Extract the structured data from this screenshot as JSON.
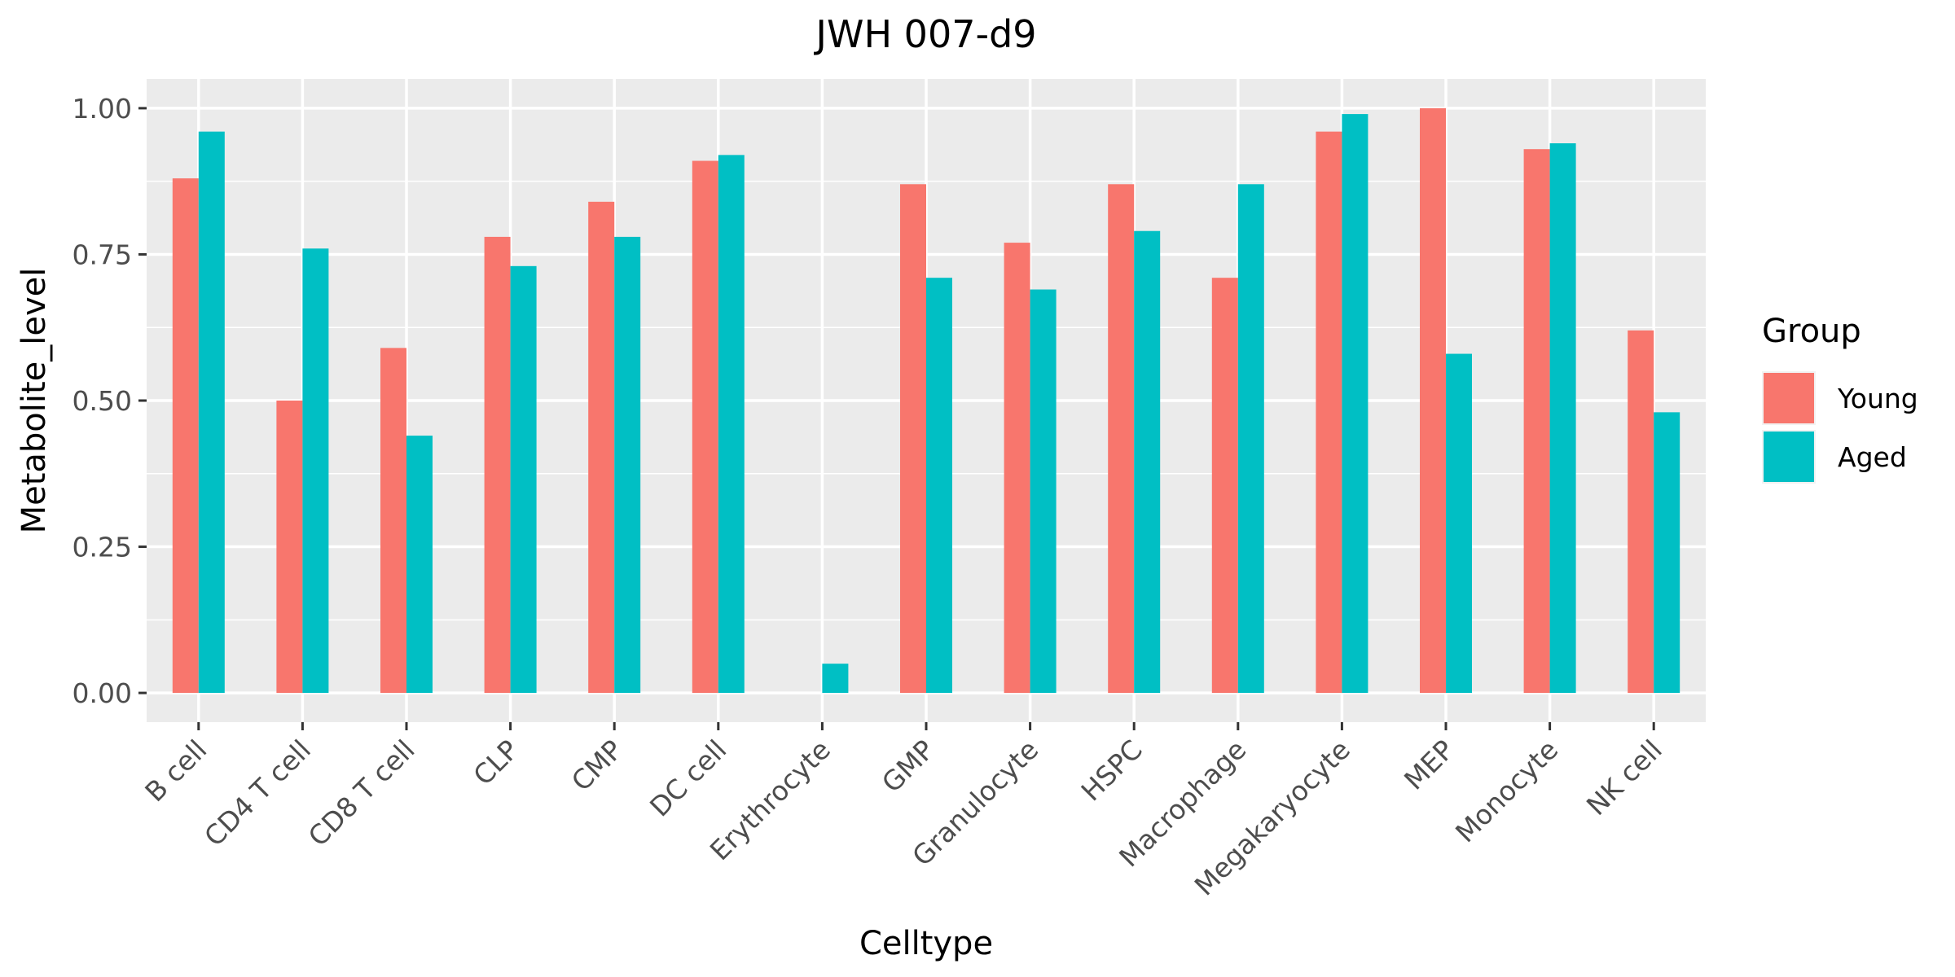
{
  "chart_data": {
    "type": "bar",
    "title": "JWH 007-d9",
    "xlabel": "Celltype",
    "ylabel": "Metabolite_level",
    "ylim": [
      -0.05,
      1.05
    ],
    "yticks": [
      "0.00",
      "0.25",
      "0.50",
      "0.75",
      "1.00"
    ],
    "grid": true,
    "legend": {
      "title": "Group",
      "position": "right"
    },
    "categories": [
      "B cell",
      "CD4 T cell",
      "CD8 T cell",
      "CLP",
      "CMP",
      "DC cell",
      "Erythrocyte",
      "GMP",
      "Granulocyte",
      "HSPC",
      "Macrophage",
      "Megakaryocyte",
      "MEP",
      "Monocyte",
      "NK cell"
    ],
    "series": [
      {
        "name": "Young",
        "color": "#F8766D",
        "values": [
          0.88,
          0.5,
          0.59,
          0.78,
          0.84,
          0.91,
          null,
          0.87,
          0.77,
          0.87,
          0.71,
          0.96,
          1.0,
          0.93,
          0.62
        ]
      },
      {
        "name": "Aged",
        "color": "#00BFC4",
        "values": [
          0.96,
          0.76,
          0.44,
          0.73,
          0.78,
          0.92,
          0.05,
          0.71,
          0.69,
          0.79,
          0.87,
          0.99,
          0.58,
          0.94,
          0.48
        ]
      }
    ]
  },
  "colors": {
    "panel_background": "#EBEBEB",
    "grid": "#FFFFFF",
    "tick_text": "#4D4D4D"
  }
}
